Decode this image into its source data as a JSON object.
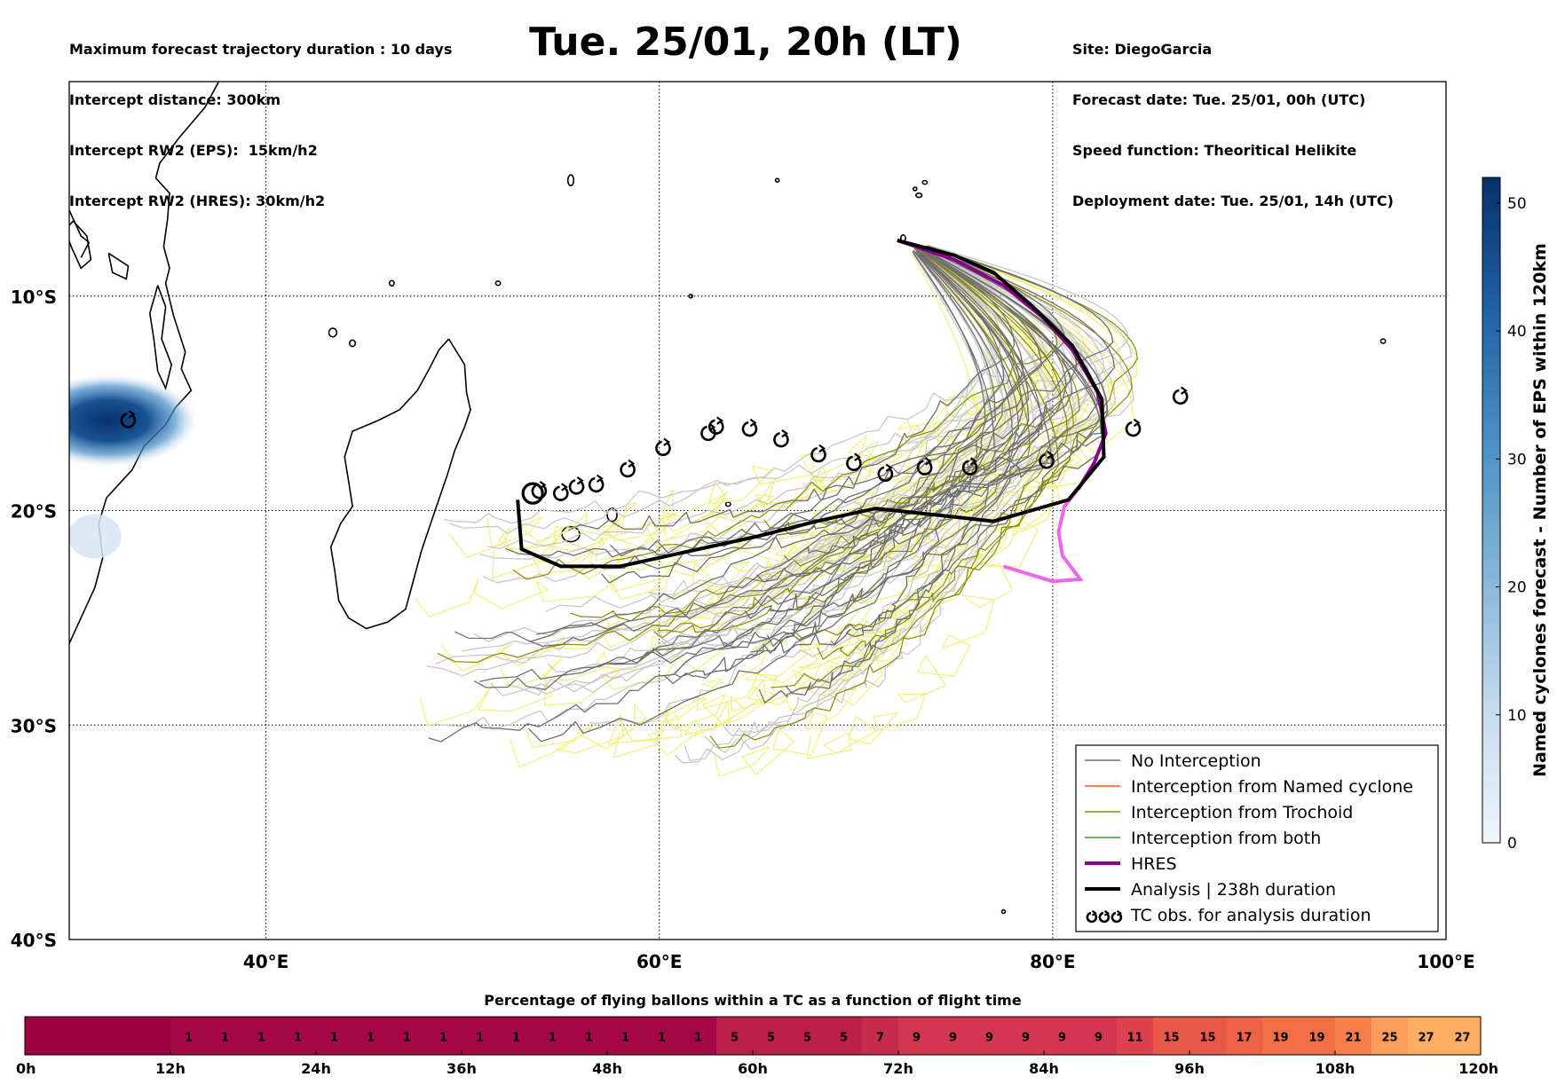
{
  "title": "Tue. 25/01, 20h (LT)",
  "header_left": [
    "Maximum forecast trajectory duration : 10 days",
    "Intercept distance: 300km",
    "Intercept RW2 (EPS):  15km/h2",
    "Intercept RW2 (HRES): 30km/h2"
  ],
  "header_right": [
    "Site: DiegoGarcia",
    "Forecast date: Tue. 25/01, 00h (UTC)",
    "Speed function: Theoritical Helikite",
    "Deployment date: Tue. 25/01, 14h (UTC)"
  ],
  "colors": {
    "no_interception": "#6e6e6e",
    "no_interception_light": "#c8c8c8",
    "named_cyclone": "#ff5a1e",
    "trochoid": "#8c8c00",
    "trochoid_light": "#f0f078",
    "both": "#2ca02c",
    "hres": "#8b008b",
    "hres_light": "#ee66ee",
    "analysis": "#000000",
    "colorbar_high": "#08306b",
    "colorbar_low": "#deebf7"
  },
  "chart_data": [
    {
      "type": "line",
      "description_axes": "map",
      "xlabel": "",
      "ylabel": "",
      "xlim": [
        30,
        100
      ],
      "ylim": [
        -40,
        0
      ],
      "x_ticks": [
        "40°E",
        "60°E",
        "80°E",
        "100°E"
      ],
      "x_tick_values": [
        40,
        60,
        80,
        100
      ],
      "y_ticks": [
        "10°S",
        "20°S",
        "30°S",
        "40°S"
      ],
      "y_tick_values": [
        -10,
        -20,
        -30,
        -40
      ],
      "grid": true,
      "legend_position": "bottom-right",
      "legend": [
        {
          "label": "No Interception",
          "style": "no_interception"
        },
        {
          "label": "Interception from Named cyclone",
          "style": "named_cyclone"
        },
        {
          "label": "Interception from Trochoid",
          "style": "trochoid"
        },
        {
          "label": "Interception from both",
          "style": "both"
        },
        {
          "label": "HRES",
          "style": "hres"
        },
        {
          "label": "Analysis | 238h duration",
          "style": "analysis"
        },
        {
          "label": "TC obs. for analysis duration",
          "style": "tc_marker"
        }
      ],
      "series": [
        {
          "name": "Analysis | 238h duration",
          "points": [
            [
              72.1,
              -7.4
            ],
            [
              75,
              -8.1
            ],
            [
              77,
              -8.9
            ],
            [
              79,
              -10.5
            ],
            [
              81,
              -12.3
            ],
            [
              82.5,
              -14.8
            ],
            [
              82.6,
              -17.5
            ],
            [
              80.8,
              -19.5
            ],
            [
              77,
              -20.5
            ],
            [
              74,
              -20.2
            ],
            [
              71,
              -19.9
            ],
            [
              68,
              -20.5
            ],
            [
              65,
              -21.2
            ],
            [
              62,
              -21.8
            ],
            [
              58,
              -22.6
            ],
            [
              55,
              -22.6
            ],
            [
              53,
              -21.8
            ],
            [
              52.8,
              -19.5
            ]
          ]
        },
        {
          "name": "HRES",
          "points": [
            [
              72.1,
              -7.4
            ],
            [
              75,
              -8.3
            ],
            [
              77.5,
              -9.5
            ],
            [
              79.5,
              -11
            ],
            [
              81,
              -12.5
            ],
            [
              82.3,
              -14.5
            ],
            [
              82.7,
              -16.4
            ],
            [
              82.1,
              -17.8
            ],
            [
              81.3,
              -19
            ],
            [
              80.6,
              -19.8
            ],
            [
              80.3,
              -21
            ],
            [
              80.5,
              -22.1
            ],
            [
              81.4,
              -23.2
            ],
            [
              80,
              -23.3
            ],
            [
              77.5,
              -22.6
            ]
          ]
        }
      ],
      "tc_obs": [
        [
          33,
          -15.8
        ],
        [
          53.9,
          -19.1
        ],
        [
          55,
          -19.2
        ],
        [
          55.8,
          -18.9
        ],
        [
          56.8,
          -18.8
        ],
        [
          58.4,
          -18.1
        ],
        [
          60.2,
          -17.1
        ],
        [
          62.5,
          -16.4
        ],
        [
          62.9,
          -16.1
        ],
        [
          64.6,
          -16.2
        ],
        [
          66.2,
          -16.7
        ],
        [
          68.1,
          -17.4
        ],
        [
          69.9,
          -17.8
        ],
        [
          71.5,
          -18.3
        ],
        [
          73.5,
          -18
        ],
        [
          75.8,
          -18
        ],
        [
          79.7,
          -17.7
        ],
        [
          84.1,
          -16.2
        ],
        [
          86.5,
          -14.7
        ]
      ],
      "deployment_site": [
        72.4,
        -7.3
      ],
      "named_cyclones_forecast_centre": [
        32,
        -15.8
      ]
    },
    {
      "type": "heatmap",
      "title": "Named cyclones forecast - Number of EPS within 120km",
      "ticks": [
        0,
        10,
        20,
        30,
        40,
        50
      ],
      "range": [
        0,
        52
      ],
      "orientation": "vertical"
    },
    {
      "type": "heatmap",
      "title": "Percentage of flying ballons within a TC as a function of flight time",
      "x_ticks": [
        "0h",
        "12h",
        "24h",
        "36h",
        "48h",
        "60h",
        "72h",
        "84h",
        "96h",
        "108h",
        "120h"
      ],
      "values": [
        null,
        null,
        null,
        null,
        1,
        1,
        1,
        1,
        1,
        1,
        1,
        1,
        1,
        1,
        1,
        1,
        1,
        1,
        1,
        5,
        5,
        5,
        5,
        7,
        9,
        9,
        9,
        9,
        9,
        9,
        11,
        15,
        15,
        17,
        19,
        19,
        21,
        25,
        27,
        27
      ]
    }
  ]
}
